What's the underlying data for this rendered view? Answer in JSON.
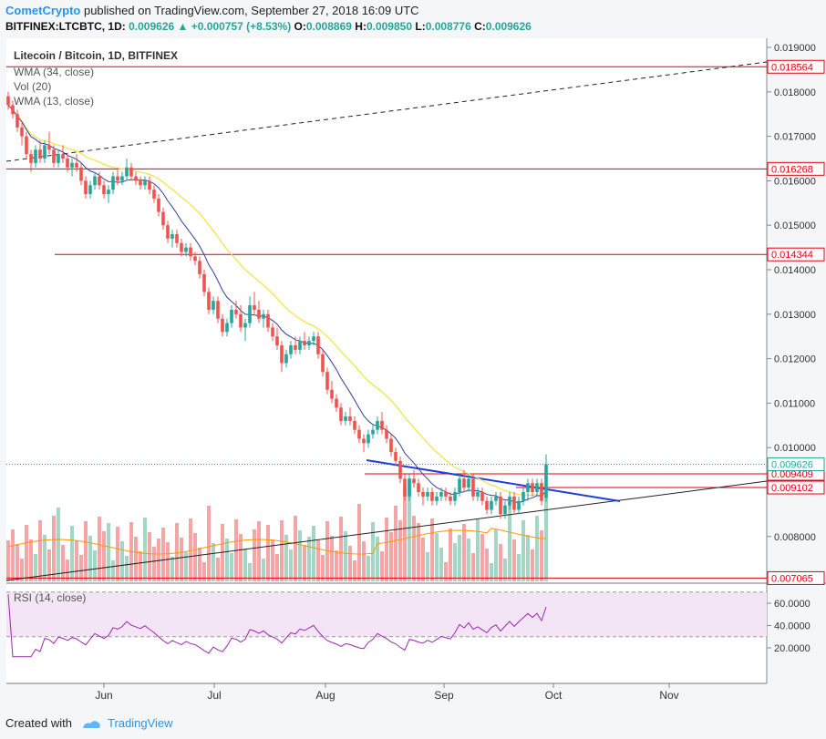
{
  "header": {
    "author": "CometCrypto",
    "published_text": "published on TradingView.com, September 27, 2018 16:09 UTC",
    "symbol": "BITFINEX:LTCBTC, 1D",
    "last": "0.009626",
    "change": "+0.000757 (+8.53%)",
    "open_label": "O:",
    "open": "0.008869",
    "high_label": "H:",
    "high": "0.009850",
    "low_label": "L:",
    "low": "0.008776",
    "close_label": "C:",
    "close": "0.009626"
  },
  "legend": {
    "title": "Litecoin / Bitcoin, 1D, BITFINEX",
    "wma34": "WMA (34, close)",
    "vol": "Vol (20)",
    "wma13": "WMA (13, close)",
    "rsi": "RSI (14, close)"
  },
  "footer": {
    "created_with": "Created with",
    "brand": "TradingView"
  },
  "colors": {
    "up": "#26a69a",
    "down": "#ef5350",
    "up_vol": "#a5d6c5",
    "down_vol": "#f4a6a6",
    "wma34": "#f7e03c",
    "wma13": "#303f9f",
    "vol_ma": "#ff9800",
    "rsi": "#9c27b0",
    "rsi_band": "#f3e5f5",
    "hline": "#e0000f",
    "trend_blue": "#1e3fd6"
  },
  "chart_data": {
    "type": "candlestick",
    "price_axis": {
      "ticks": [
        "0.019000",
        "0.018000",
        "0.017000",
        "0.016000",
        "0.015000",
        "0.014000",
        "0.013000",
        "0.012000",
        "0.011000",
        "0.010000",
        "0.008000"
      ],
      "tick_values": [
        0.019,
        0.018,
        0.017,
        0.016,
        0.015,
        0.014,
        0.013,
        0.012,
        0.011,
        0.01,
        0.008
      ]
    },
    "time_axis": {
      "ticks": [
        "Jun",
        "Jul",
        "Aug",
        "Sep",
        "Oct",
        "Nov"
      ]
    },
    "rsi_axis": {
      "ticks": [
        "60.0000",
        "40.0000",
        "20.0000"
      ],
      "tick_values": [
        60,
        40,
        20
      ],
      "band": [
        30,
        70
      ]
    },
    "horizontal_levels": [
      {
        "value": 0.018564,
        "label": "0.018564"
      },
      {
        "value": 0.016268,
        "label": "0.016268"
      },
      {
        "value": 0.014344,
        "label": "0.014344"
      },
      {
        "value": 0.009409,
        "label": "0.009409"
      },
      {
        "value": 0.009102,
        "label": "0.009102"
      },
      {
        "value": 0.007065,
        "label": "0.007065"
      }
    ],
    "last_price": {
      "value": 0.009626,
      "label": "0.009626"
    },
    "candles": [
      [
        0.0179,
        0.018,
        0.0176,
        0.0177
      ],
      [
        0.0177,
        0.0178,
        0.0174,
        0.0175
      ],
      [
        0.0175,
        0.0176,
        0.0171,
        0.0172
      ],
      [
        0.0172,
        0.0173,
        0.0168,
        0.017
      ],
      [
        0.017,
        0.0171,
        0.0165,
        0.0166
      ],
      [
        0.0166,
        0.0167,
        0.0162,
        0.0164
      ],
      [
        0.0164,
        0.0168,
        0.0163,
        0.0167
      ],
      [
        0.0167,
        0.0169,
        0.0164,
        0.0165
      ],
      [
        0.0165,
        0.0169,
        0.0164,
        0.0168
      ],
      [
        0.0168,
        0.0171,
        0.0166,
        0.0167
      ],
      [
        0.0167,
        0.0168,
        0.0163,
        0.0164
      ],
      [
        0.0164,
        0.0167,
        0.0163,
        0.0166
      ],
      [
        0.0166,
        0.0168,
        0.0164,
        0.0165
      ],
      [
        0.0165,
        0.0166,
        0.0162,
        0.0163
      ],
      [
        0.0163,
        0.0165,
        0.0161,
        0.0164
      ],
      [
        0.0164,
        0.0166,
        0.0162,
        0.0163
      ],
      [
        0.0163,
        0.0164,
        0.0159,
        0.016
      ],
      [
        0.016,
        0.0161,
        0.0156,
        0.0157
      ],
      [
        0.0157,
        0.016,
        0.0156,
        0.0159
      ],
      [
        0.0159,
        0.0162,
        0.0158,
        0.0161
      ],
      [
        0.0161,
        0.0162,
        0.0158,
        0.0159
      ],
      [
        0.0159,
        0.016,
        0.0156,
        0.0157
      ],
      [
        0.0157,
        0.0159,
        0.0155,
        0.0158
      ],
      [
        0.0158,
        0.0162,
        0.0157,
        0.0161
      ],
      [
        0.0161,
        0.0163,
        0.0159,
        0.016
      ],
      [
        0.016,
        0.0162,
        0.0159,
        0.0161
      ],
      [
        0.0161,
        0.0165,
        0.016,
        0.0163
      ],
      [
        0.0163,
        0.0164,
        0.016,
        0.0161
      ],
      [
        0.0161,
        0.0162,
        0.0159,
        0.016
      ],
      [
        0.016,
        0.0161,
        0.0158,
        0.0159
      ],
      [
        0.0159,
        0.0161,
        0.0158,
        0.016
      ],
      [
        0.016,
        0.0161,
        0.0157,
        0.0158
      ],
      [
        0.0158,
        0.0159,
        0.0155,
        0.0156
      ],
      [
        0.0156,
        0.0157,
        0.0152,
        0.0153
      ],
      [
        0.0153,
        0.0154,
        0.0149,
        0.015
      ],
      [
        0.015,
        0.0151,
        0.0146,
        0.0147
      ],
      [
        0.0147,
        0.0149,
        0.0145,
        0.0148
      ],
      [
        0.0148,
        0.0149,
        0.0145,
        0.0146
      ],
      [
        0.0146,
        0.0147,
        0.0143,
        0.0144
      ],
      [
        0.0144,
        0.0146,
        0.0143,
        0.0145
      ],
      [
        0.0145,
        0.0146,
        0.0142,
        0.0143
      ],
      [
        0.0143,
        0.0144,
        0.0141,
        0.0142
      ],
      [
        0.0142,
        0.0143,
        0.0138,
        0.0139
      ],
      [
        0.0139,
        0.014,
        0.0134,
        0.0135
      ],
      [
        0.0135,
        0.0136,
        0.013,
        0.0131
      ],
      [
        0.0131,
        0.0134,
        0.013,
        0.0133
      ],
      [
        0.0133,
        0.0134,
        0.0128,
        0.0129
      ],
      [
        0.0129,
        0.013,
        0.0125,
        0.0126
      ],
      [
        0.0126,
        0.0129,
        0.0125,
        0.0128
      ],
      [
        0.0128,
        0.0132,
        0.0127,
        0.0131
      ],
      [
        0.0131,
        0.0133,
        0.0129,
        0.013
      ],
      [
        0.013,
        0.0132,
        0.0126,
        0.0127
      ],
      [
        0.0127,
        0.0129,
        0.0124,
        0.0128
      ],
      [
        0.0128,
        0.0134,
        0.0127,
        0.0132
      ],
      [
        0.0132,
        0.0135,
        0.013,
        0.0131
      ],
      [
        0.0131,
        0.0133,
        0.0128,
        0.0129
      ],
      [
        0.0129,
        0.0131,
        0.0127,
        0.013
      ],
      [
        0.013,
        0.0131,
        0.0126,
        0.0127
      ],
      [
        0.0127,
        0.0128,
        0.0124,
        0.0125
      ],
      [
        0.0125,
        0.0127,
        0.0122,
        0.0123
      ],
      [
        0.0123,
        0.0124,
        0.0117,
        0.0119
      ],
      [
        0.0119,
        0.0122,
        0.0118,
        0.0121
      ],
      [
        0.0121,
        0.0124,
        0.012,
        0.0123
      ],
      [
        0.0123,
        0.0125,
        0.0121,
        0.0122
      ],
      [
        0.0122,
        0.0125,
        0.0121,
        0.0124
      ],
      [
        0.0124,
        0.0126,
        0.0122,
        0.0123
      ],
      [
        0.0123,
        0.0125,
        0.0122,
        0.0124
      ],
      [
        0.0124,
        0.0126,
        0.0123,
        0.0125
      ],
      [
        0.0125,
        0.0126,
        0.012,
        0.0121
      ],
      [
        0.0121,
        0.0122,
        0.0116,
        0.0117
      ],
      [
        0.0117,
        0.0118,
        0.0112,
        0.0113
      ],
      [
        0.0113,
        0.0115,
        0.011,
        0.0111
      ],
      [
        0.0111,
        0.0112,
        0.0108,
        0.0109
      ],
      [
        0.0109,
        0.011,
        0.0105,
        0.0106
      ],
      [
        0.0106,
        0.0108,
        0.0105,
        0.0107
      ],
      [
        0.0107,
        0.0109,
        0.0105,
        0.0106
      ],
      [
        0.0106,
        0.0107,
        0.0103,
        0.0104
      ],
      [
        0.0104,
        0.0105,
        0.0101,
        0.0102
      ],
      [
        0.0102,
        0.0103,
        0.0099,
        0.0101
      ],
      [
        0.0101,
        0.0104,
        0.01,
        0.0103
      ],
      [
        0.0103,
        0.0105,
        0.0102,
        0.0104
      ],
      [
        0.0104,
        0.0107,
        0.0103,
        0.0106
      ],
      [
        0.0106,
        0.0108,
        0.0103,
        0.0104
      ],
      [
        0.0104,
        0.0105,
        0.0101,
        0.0102
      ],
      [
        0.0102,
        0.0103,
        0.0098,
        0.0099
      ],
      [
        0.0099,
        0.01,
        0.0096,
        0.0097
      ],
      [
        0.0097,
        0.0098,
        0.0092,
        0.0093
      ],
      [
        0.0093,
        0.0094,
        0.0088,
        0.0089
      ],
      [
        0.0089,
        0.0094,
        0.0088,
        0.0093
      ],
      [
        0.0093,
        0.0095,
        0.0091,
        0.0092
      ],
      [
        0.0092,
        0.0093,
        0.0089,
        0.009
      ],
      [
        0.009,
        0.0091,
        0.0087,
        0.0089
      ],
      [
        0.0089,
        0.0091,
        0.0088,
        0.009
      ],
      [
        0.009,
        0.0091,
        0.0087,
        0.0088
      ],
      [
        0.0088,
        0.009,
        0.0087,
        0.0089
      ],
      [
        0.0089,
        0.0091,
        0.0088,
        0.009
      ],
      [
        0.009,
        0.0091,
        0.0088,
        0.0089
      ],
      [
        0.0089,
        0.009,
        0.0087,
        0.0088
      ],
      [
        0.0088,
        0.0091,
        0.0087,
        0.009
      ],
      [
        0.009,
        0.0094,
        0.0089,
        0.0093
      ],
      [
        0.0093,
        0.0095,
        0.009,
        0.0091
      ],
      [
        0.0091,
        0.0094,
        0.009,
        0.0093
      ],
      [
        0.0093,
        0.0094,
        0.0088,
        0.0089
      ],
      [
        0.0089,
        0.0091,
        0.0088,
        0.009
      ],
      [
        0.009,
        0.0091,
        0.0087,
        0.0088
      ],
      [
        0.0088,
        0.0089,
        0.0085,
        0.0086
      ],
      [
        0.0086,
        0.0089,
        0.0085,
        0.0088
      ],
      [
        0.0088,
        0.009,
        0.0087,
        0.0089
      ],
      [
        0.0089,
        0.009,
        0.0084,
        0.0085
      ],
      [
        0.0085,
        0.0088,
        0.0084,
        0.0087
      ],
      [
        0.0087,
        0.009,
        0.0086,
        0.0089
      ],
      [
        0.0089,
        0.009,
        0.0085,
        0.0086
      ],
      [
        0.0086,
        0.0089,
        0.0085,
        0.0088
      ],
      [
        0.0088,
        0.0091,
        0.0087,
        0.009
      ],
      [
        0.009,
        0.0093,
        0.0088,
        0.0092
      ],
      [
        0.0092,
        0.0093,
        0.0089,
        0.009
      ],
      [
        0.009,
        0.0093,
        0.0089,
        0.0092
      ],
      [
        0.0092,
        0.0093,
        0.0087,
        0.0088
      ],
      [
        0.0088694,
        0.00985,
        0.008776,
        0.009626
      ]
    ]
  }
}
